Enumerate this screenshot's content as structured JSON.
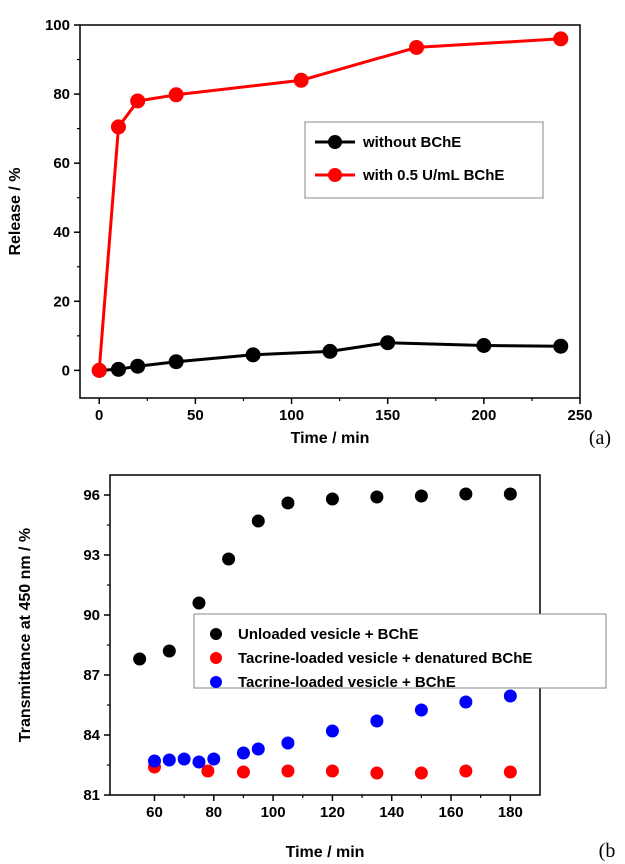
{
  "chart_data": [
    {
      "type": "line",
      "panel_label": "(a)",
      "xlabel": "Time / min",
      "ylabel": "Release  / %",
      "xlim": [
        -10,
        250
      ],
      "ylim": [
        -8,
        100
      ],
      "xticks": [
        0,
        50,
        100,
        150,
        200,
        250
      ],
      "yticks": [
        0,
        20,
        40,
        60,
        80,
        100
      ],
      "grid": false,
      "legend_position": "center-right",
      "series": [
        {
          "name": "without BChE",
          "color": "#000000",
          "marker": "circle",
          "line": true,
          "points": [
            [
              0,
              0
            ],
            [
              10,
              0.3
            ],
            [
              20,
              1.2
            ],
            [
              40,
              2.5
            ],
            [
              80,
              4.5
            ],
            [
              120,
              5.5
            ],
            [
              150,
              8
            ],
            [
              200,
              7.2
            ],
            [
              240,
              7
            ]
          ]
        },
        {
          "name": "with 0.5 U/mL BChE",
          "color": "#ff0000",
          "marker": "circle",
          "line": true,
          "points": [
            [
              0,
              0
            ],
            [
              10,
              70.5
            ],
            [
              20,
              78
            ],
            [
              40,
              79.8
            ],
            [
              105,
              84
            ],
            [
              165,
              93.5
            ],
            [
              240,
              96
            ]
          ]
        }
      ]
    },
    {
      "type": "scatter",
      "panel_label": "(b",
      "xlabel": "Time / min",
      "ylabel": "Transmittance at 450 nm / %",
      "xlim": [
        45,
        190
      ],
      "ylim": [
        81,
        97
      ],
      "xticks": [
        60,
        80,
        100,
        120,
        140,
        160,
        180
      ],
      "yticks": [
        81,
        84,
        87,
        90,
        93,
        96
      ],
      "grid": false,
      "legend_position": "center-right",
      "series": [
        {
          "name": "Unloaded vesicle + BChE",
          "color": "#000000",
          "marker": "circle",
          "line": false,
          "points": [
            [
              55,
              87.8
            ],
            [
              65,
              88.2
            ],
            [
              75,
              90.6
            ],
            [
              85,
              92.8
            ],
            [
              95,
              94.7
            ],
            [
              105,
              95.6
            ],
            [
              120,
              95.8
            ],
            [
              135,
              95.9
            ],
            [
              150,
              95.95
            ],
            [
              165,
              96.05
            ],
            [
              180,
              96.05
            ]
          ]
        },
        {
          "name": "Tacrine-loaded vesicle + denatured BChE",
          "color": "#ff0000",
          "marker": "circle",
          "line": false,
          "points": [
            [
              60,
              82.4
            ],
            [
              78,
              82.2
            ],
            [
              90,
              82.15
            ],
            [
              105,
              82.2
            ],
            [
              120,
              82.2
            ],
            [
              135,
              82.1
            ],
            [
              150,
              82.1
            ],
            [
              165,
              82.2
            ],
            [
              180,
              82.15
            ]
          ]
        },
        {
          "name": "Tacrine-loaded vesicle + BChE",
          "color": "#0000ff",
          "marker": "circle",
          "line": false,
          "points": [
            [
              60,
              82.7
            ],
            [
              65,
              82.75
            ],
            [
              70,
              82.8
            ],
            [
              75,
              82.65
            ],
            [
              80,
              82.8
            ],
            [
              90,
              83.1
            ],
            [
              95,
              83.3
            ],
            [
              105,
              83.6
            ],
            [
              120,
              84.2
            ],
            [
              135,
              84.7
            ],
            [
              150,
              85.25
            ],
            [
              165,
              85.65
            ],
            [
              180,
              85.95
            ]
          ]
        }
      ]
    }
  ]
}
